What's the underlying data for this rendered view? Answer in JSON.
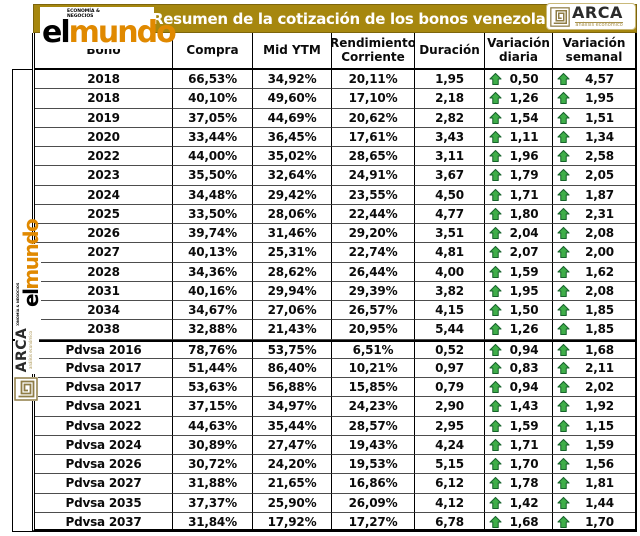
{
  "banner": {
    "title": "Resumen de la cotización de los bonos venezolanos"
  },
  "logos": {
    "elmundo": {
      "prefix": "el",
      "suffix": "mundo",
      "tagline": "Economía & Negocios"
    },
    "arca": {
      "name": "ARCA",
      "tagline": "análisis económico"
    }
  },
  "colors": {
    "banner_gold": "#A6870F",
    "elmundo_orange": "#E08900",
    "arrow_green_fill": "#3FAE49",
    "arrow_green_border": "#17632C",
    "arca_khaki": "#8F7D46",
    "grid_line": "#4d4d4d"
  },
  "chart_data": {
    "type": "table",
    "title": "Resumen de la cotización de los bonos venezolanos",
    "columns": [
      "Bono",
      "Compra",
      "Mid YTM",
      "Rendimiento Corriente",
      "Duración",
      "Variación diaria",
      "Variación semanal"
    ],
    "variation_trend": "up",
    "rows": [
      [
        "2018",
        "66,53%",
        "34,92%",
        "20,11%",
        "1,95",
        "0,50",
        "4,57"
      ],
      [
        "2018",
        "40,10%",
        "49,60%",
        "17,10%",
        "2,18",
        "1,26",
        "1,95"
      ],
      [
        "2019",
        "37,05%",
        "44,69%",
        "20,62%",
        "2,82",
        "1,54",
        "1,51"
      ],
      [
        "2020",
        "33,44%",
        "36,45%",
        "17,61%",
        "3,43",
        "1,11",
        "1,34"
      ],
      [
        "2022",
        "44,00%",
        "35,02%",
        "28,65%",
        "3,11",
        "1,96",
        "2,58"
      ],
      [
        "2023",
        "35,50%",
        "32,64%",
        "24,91%",
        "3,67",
        "1,79",
        "2,05"
      ],
      [
        "2024",
        "34,48%",
        "29,42%",
        "23,55%",
        "4,50",
        "1,71",
        "1,87"
      ],
      [
        "2025",
        "33,50%",
        "28,06%",
        "22,44%",
        "4,77",
        "1,80",
        "2,31"
      ],
      [
        "2026",
        "39,74%",
        "31,46%",
        "29,20%",
        "3,51",
        "2,04",
        "2,08"
      ],
      [
        "2027",
        "40,13%",
        "25,31%",
        "22,74%",
        "4,81",
        "2,07",
        "2,00"
      ],
      [
        "2028",
        "34,36%",
        "28,62%",
        "26,44%",
        "4,00",
        "1,59",
        "1,62"
      ],
      [
        "2031",
        "40,16%",
        "29,94%",
        "29,39%",
        "3,82",
        "1,95",
        "2,08"
      ],
      [
        "2034",
        "34,67%",
        "27,06%",
        "26,57%",
        "4,15",
        "1,50",
        "1,85"
      ],
      [
        "2038",
        "32,88%",
        "21,43%",
        "20,95%",
        "5,44",
        "1,26",
        "1,85"
      ],
      [
        "Pdvsa 2016",
        "78,76%",
        "53,75%",
        "6,51%",
        "0,52",
        "0,94",
        "1,68"
      ],
      [
        "Pdvsa 2017",
        "51,44%",
        "86,40%",
        "10,21%",
        "0,97",
        "0,83",
        "2,11"
      ],
      [
        "Pdvsa 2017",
        "53,63%",
        "56,88%",
        "15,85%",
        "0,79",
        "0,94",
        "2,02"
      ],
      [
        "Pdvsa 2021",
        "37,15%",
        "34,97%",
        "24,23%",
        "2,90",
        "1,43",
        "1,92"
      ],
      [
        "Pdvsa 2022",
        "44,63%",
        "35,44%",
        "28,57%",
        "2,95",
        "1,59",
        "1,15"
      ],
      [
        "Pdvsa 2024",
        "30,89%",
        "27,47%",
        "19,43%",
        "4,24",
        "1,71",
        "1,59"
      ],
      [
        "Pdvsa 2026",
        "30,72%",
        "24,20%",
        "19,53%",
        "5,15",
        "1,70",
        "1,56"
      ],
      [
        "Pdvsa 2027",
        "31,88%",
        "21,65%",
        "16,86%",
        "6,12",
        "1,78",
        "1,81"
      ],
      [
        "Pdvsa 2035",
        "37,37%",
        "25,90%",
        "26,09%",
        "4,12",
        "1,42",
        "1,44"
      ],
      [
        "Pdvsa 2037",
        "31,84%",
        "17,92%",
        "17,27%",
        "6,78",
        "1,68",
        "1,70"
      ]
    ],
    "groups": {
      "sovereign_row_indexes": [
        0,
        13
      ],
      "pdvsa_row_indexes": [
        14,
        23
      ],
      "pdvsa_section_first_row": 14
    },
    "layout": {
      "legend_position": "none",
      "grid": "on"
    }
  }
}
